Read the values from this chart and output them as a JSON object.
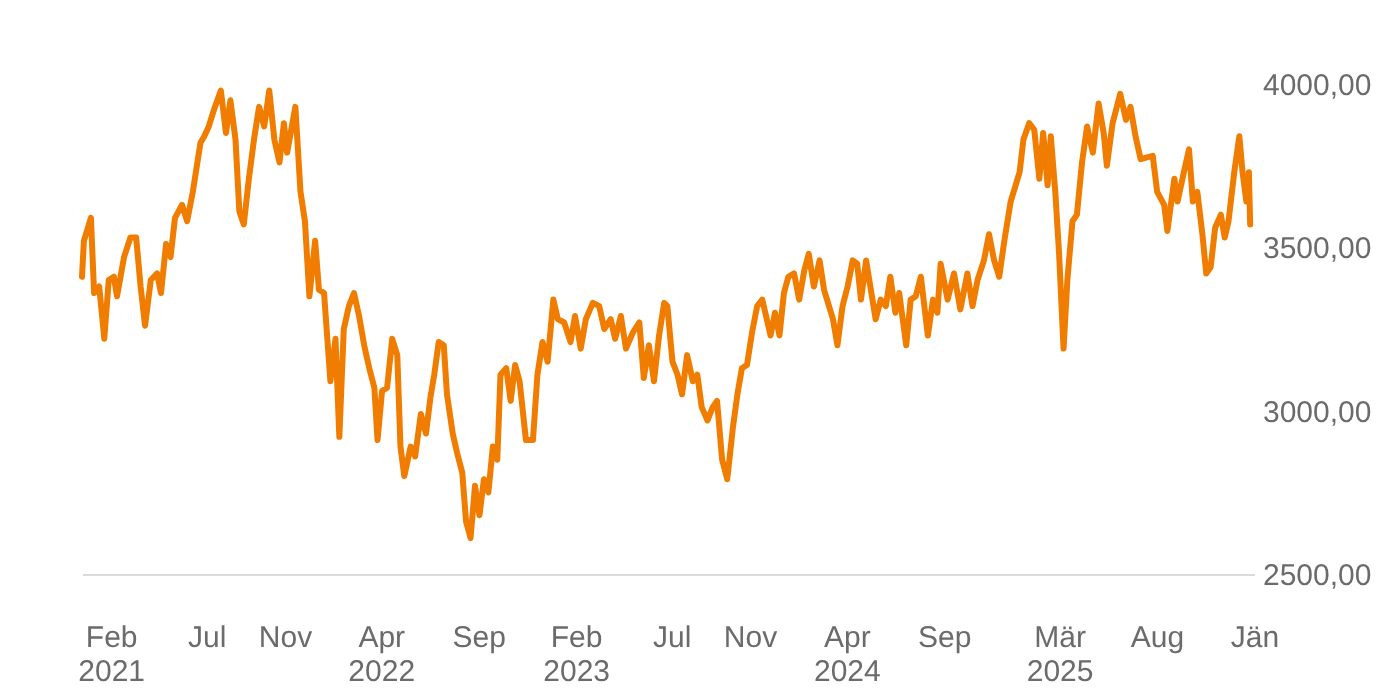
{
  "chart_data": {
    "type": "line",
    "x": [
      "2020-12-18",
      "2020-12-21",
      "2021-01-01",
      "2021-01-06",
      "2021-01-14",
      "2021-01-22",
      "2021-01-29",
      "2021-02-06",
      "2021-02-11",
      "2021-02-22",
      "2021-03-04",
      "2021-03-13",
      "2021-03-20",
      "2021-03-27",
      "2021-04-05",
      "2021-04-15",
      "2021-04-21",
      "2021-04-29",
      "2021-05-06",
      "2021-05-13",
      "2021-05-24",
      "2021-06-01",
      "2021-06-10",
      "2021-06-22",
      "2021-06-28",
      "2021-07-05",
      "2021-07-13",
      "2021-07-24",
      "2021-08-01",
      "2021-08-08",
      "2021-08-16",
      "2021-08-22",
      "2021-08-29",
      "2021-09-06",
      "2021-09-14",
      "2021-09-22",
      "2021-09-30",
      "2021-10-08",
      "2021-10-16",
      "2021-10-24",
      "2021-10-31",
      "2021-11-05",
      "2021-11-18",
      "2021-11-26",
      "2021-12-03",
      "2021-12-10",
      "2021-12-19",
      "2021-12-25",
      "2022-01-02",
      "2022-01-12",
      "2022-01-20",
      "2022-01-26",
      "2022-02-02",
      "2022-02-10",
      "2022-02-18",
      "2022-02-26",
      "2022-03-06",
      "2022-03-14",
      "2022-03-22",
      "2022-03-27",
      "2022-04-03",
      "2022-04-11",
      "2022-04-19",
      "2022-04-27",
      "2022-05-02",
      "2022-05-08",
      "2022-05-18",
      "2022-05-25",
      "2022-06-03",
      "2022-06-11",
      "2022-06-18",
      "2022-06-24",
      "2022-07-01",
      "2022-07-09",
      "2022-07-14",
      "2022-07-23",
      "2022-07-30",
      "2022-08-07",
      "2022-08-13",
      "2022-08-20",
      "2022-08-27",
      "2022-09-03",
      "2022-09-10",
      "2022-09-17",
      "2022-09-24",
      "2022-10-01",
      "2022-10-06",
      "2022-10-15",
      "2022-10-22",
      "2022-10-29",
      "2022-11-05",
      "2022-11-15",
      "2022-11-26",
      "2022-12-03",
      "2022-12-11",
      "2022-12-19",
      "2022-12-28",
      "2023-01-04",
      "2023-01-14",
      "2023-01-24",
      "2023-01-31",
      "2023-02-09",
      "2023-02-17",
      "2023-02-28",
      "2023-03-10",
      "2023-03-18",
      "2023-03-28",
      "2023-04-04",
      "2023-04-13",
      "2023-04-21",
      "2023-05-02",
      "2023-05-12",
      "2023-05-19",
      "2023-05-27",
      "2023-06-04",
      "2023-06-12",
      "2023-06-20",
      "2023-06-25",
      "2023-07-03",
      "2023-07-11",
      "2023-07-18",
      "2023-07-26",
      "2023-08-04",
      "2023-08-11",
      "2023-08-18",
      "2023-08-27",
      "2023-09-04",
      "2023-09-11",
      "2023-09-19",
      "2023-09-27",
      "2023-10-06",
      "2023-10-13",
      "2023-10-20",
      "2023-10-28",
      "2023-11-05",
      "2023-11-13",
      "2023-11-21",
      "2023-12-04",
      "2023-12-11",
      "2023-12-18",
      "2023-12-25",
      "2024-01-01",
      "2024-01-10",
      "2024-01-18",
      "2024-01-26",
      "2024-02-02",
      "2024-02-10",
      "2024-02-19",
      "2024-02-26",
      "2024-03-11",
      "2024-03-18",
      "2024-03-26",
      "2024-04-03",
      "2024-04-11",
      "2024-04-18",
      "2024-04-24",
      "2024-05-02",
      "2024-05-17",
      "2024-05-25",
      "2024-06-02",
      "2024-06-09",
      "2024-06-17",
      "2024-06-23",
      "2024-07-04",
      "2024-07-11",
      "2024-07-19",
      "2024-07-27",
      "2024-08-07",
      "2024-08-15",
      "2024-08-22",
      "2024-08-27",
      "2024-09-07",
      "2024-09-17",
      "2024-09-27",
      "2024-10-08",
      "2024-10-16",
      "2024-10-24",
      "2024-11-03",
      "2024-11-11",
      "2024-11-19",
      "2024-11-27",
      "2024-12-05",
      "2024-12-15",
      "2024-12-29",
      "2025-01-04",
      "2025-01-13",
      "2025-01-21",
      "2025-01-29",
      "2025-02-04",
      "2025-02-11",
      "2025-02-16",
      "2025-02-23",
      "2025-03-01",
      "2025-03-08",
      "2025-03-14",
      "2025-03-22",
      "2025-03-29",
      "2025-04-06",
      "2025-04-14",
      "2025-04-23",
      "2025-05-02",
      "2025-05-10",
      "2025-05-15",
      "2025-05-24",
      "2025-06-05",
      "2025-06-14",
      "2025-06-21",
      "2025-06-29",
      "2025-07-07",
      "2025-07-26",
      "2025-08-02",
      "2025-08-13",
      "2025-08-18",
      "2025-08-29",
      "2025-09-03",
      "2025-09-14",
      "2025-09-21",
      "2025-09-27",
      "2025-10-04",
      "2025-10-12",
      "2025-10-18",
      "2025-10-25",
      "2025-11-01",
      "2025-11-10",
      "2025-11-16",
      "2025-11-22",
      "2025-12-01",
      "2025-12-09",
      "2025-12-14",
      "2025-12-20",
      "2025-12-24",
      "2025-12-26"
    ],
    "series": [
      {
        "color": "#f07c00",
        "values": [
          3410,
          3520,
          3590,
          3360,
          3380,
          3220,
          3400,
          3410,
          3350,
          3470,
          3530,
          3530,
          3380,
          3260,
          3400,
          3420,
          3360,
          3510,
          3470,
          3590,
          3630,
          3580,
          3670,
          3820,
          3840,
          3870,
          3920,
          3980,
          3850,
          3950,
          3830,
          3610,
          3570,
          3710,
          3830,
          3930,
          3870,
          3980,
          3830,
          3760,
          3880,
          3790,
          3930,
          3670,
          3580,
          3350,
          3520,
          3370,
          3360,
          3090,
          3220,
          2920,
          3250,
          3320,
          3360,
          3290,
          3200,
          3130,
          3070,
          2910,
          3060,
          3070,
          3220,
          3170,
          2890,
          2800,
          2890,
          2860,
          2990,
          2930,
          3040,
          3110,
          3210,
          3200,
          3050,
          2930,
          2870,
          2810,
          2660,
          2610,
          2770,
          2680,
          2790,
          2750,
          2890,
          2850,
          3110,
          3130,
          3030,
          3140,
          3090,
          2910,
          2910,
          3110,
          3210,
          3150,
          3340,
          3280,
          3270,
          3210,
          3290,
          3190,
          3280,
          3330,
          3320,
          3250,
          3280,
          3220,
          3290,
          3190,
          3240,
          3270,
          3100,
          3200,
          3090,
          3230,
          3330,
          3320,
          3150,
          3110,
          3050,
          3170,
          3090,
          3110,
          3010,
          2970,
          3010,
          3030,
          2850,
          2790,
          2950,
          3050,
          3130,
          3140,
          3240,
          3320,
          3340,
          3230,
          3300,
          3230,
          3360,
          3410,
          3420,
          3340,
          3430,
          3480,
          3380,
          3460,
          3370,
          3280,
          3200,
          3320,
          3380,
          3460,
          3450,
          3340,
          3460,
          3280,
          3340,
          3320,
          3410,
          3300,
          3360,
          3200,
          3340,
          3350,
          3410,
          3230,
          3340,
          3300,
          3450,
          3340,
          3420,
          3310,
          3420,
          3320,
          3400,
          3460,
          3540,
          3460,
          3410,
          3520,
          3640,
          3730,
          3830,
          3880,
          3860,
          3710,
          3850,
          3690,
          3840,
          3670,
          3480,
          3190,
          3400,
          3580,
          3600,
          3760,
          3870,
          3790,
          3940,
          3850,
          3750,
          3880,
          3970,
          3890,
          3930,
          3840,
          3770,
          3780,
          3670,
          3630,
          3550,
          3710,
          3640,
          3740,
          3800,
          3640,
          3670,
          3540,
          3420,
          3440,
          3560,
          3600,
          3530,
          3580,
          3730,
          3840,
          3730,
          3640,
          3730,
          3570
        ]
      }
    ],
    "xticks": [
      {
        "value": "2021-02-01",
        "label": "Feb\n2021"
      },
      {
        "value": "2021-07-01",
        "label": "Jul"
      },
      {
        "value": "2021-11-01",
        "label": "Nov"
      },
      {
        "value": "2022-04-01",
        "label": "Apr\n2022"
      },
      {
        "value": "2022-09-01",
        "label": "Sep"
      },
      {
        "value": "2023-02-01",
        "label": "Feb\n2023"
      },
      {
        "value": "2023-07-01",
        "label": "Jul"
      },
      {
        "value": "2023-11-01",
        "label": "Nov"
      },
      {
        "value": "2024-04-01",
        "label": "Apr\n2024"
      },
      {
        "value": "2024-09-01",
        "label": "Sep"
      },
      {
        "value": "2025-03-01",
        "label": "Mär\n2025"
      },
      {
        "value": "2025-08-01",
        "label": "Aug"
      },
      {
        "value": "2026-01-01",
        "label": "Jän"
      }
    ],
    "xlim": [
      "2020-12-18",
      "2026-01-01"
    ],
    "ylim": [
      2500,
      4000
    ],
    "yticks": [
      {
        "value": 2500,
        "label": "2500,00"
      },
      {
        "value": 3000,
        "label": "3000,00"
      },
      {
        "value": 3500,
        "label": "3500,00"
      },
      {
        "value": 4000,
        "label": "4000,00"
      }
    ],
    "grid": false,
    "line_style": "solid"
  }
}
